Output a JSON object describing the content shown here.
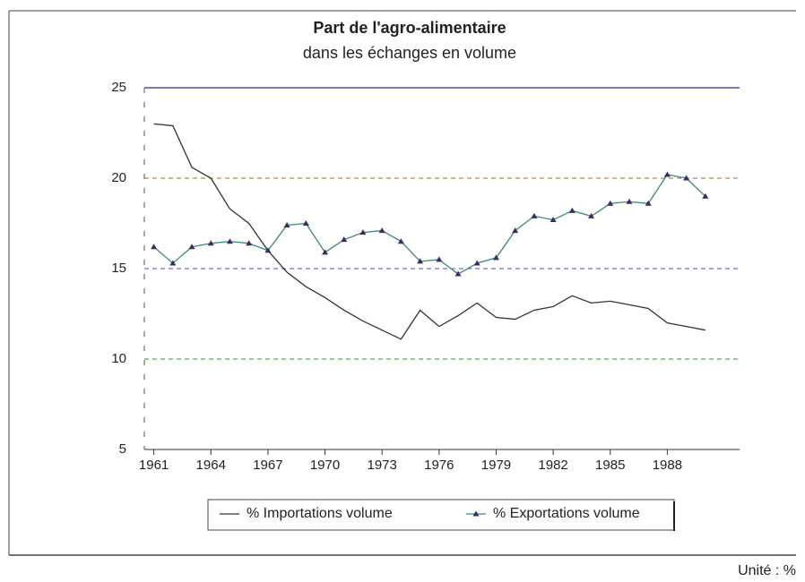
{
  "chart_data": {
    "type": "line",
    "title": "Part de l'agro-alimentaire",
    "subtitle": "dans les échanges en volume",
    "x": [
      1961,
      1962,
      1963,
      1964,
      1965,
      1966,
      1967,
      1968,
      1969,
      1970,
      1971,
      1972,
      1973,
      1974,
      1975,
      1976,
      1977,
      1978,
      1979,
      1980,
      1981,
      1982,
      1983,
      1984,
      1985,
      1986,
      1987,
      1988,
      1989,
      1990
    ],
    "series": [
      {
        "name": "% Importations volume",
        "color": "#333333",
        "marker": false,
        "values": [
          23.0,
          22.9,
          20.6,
          20.0,
          18.3,
          17.5,
          16.0,
          14.8,
          14.0,
          13.4,
          12.7,
          12.1,
          11.6,
          11.1,
          12.7,
          11.8,
          12.4,
          13.1,
          12.3,
          12.2,
          12.7,
          12.9,
          13.5,
          13.1,
          13.2,
          13.0,
          12.8,
          12.0,
          11.8,
          11.6
        ]
      },
      {
        "name": "% Exportations volume",
        "color": "#3a8a78",
        "marker": true,
        "values": [
          16.2,
          15.3,
          16.2,
          16.4,
          16.5,
          16.4,
          16.0,
          17.4,
          17.5,
          15.9,
          16.6,
          17.0,
          17.1,
          16.5,
          15.4,
          15.5,
          14.7,
          15.3,
          15.6,
          17.1,
          17.9,
          17.7,
          18.2,
          17.9,
          18.6,
          18.7,
          18.6,
          20.2,
          20.0,
          19.0
        ]
      }
    ],
    "xlim": [
      1960.5,
      1991.8
    ],
    "xticks": [
      1961,
      1964,
      1967,
      1970,
      1973,
      1976,
      1979,
      1982,
      1985,
      1988
    ],
    "ylim": [
      5,
      25
    ],
    "yticks": [
      5,
      10,
      15,
      20,
      25
    ],
    "grid": true,
    "grid_colors": [
      "#555555",
      "#3a8a3a",
      "#4a4ac8",
      "#9a6a2a",
      "#5a4ab0"
    ],
    "legend": "bottom",
    "note": "Unité : %"
  }
}
